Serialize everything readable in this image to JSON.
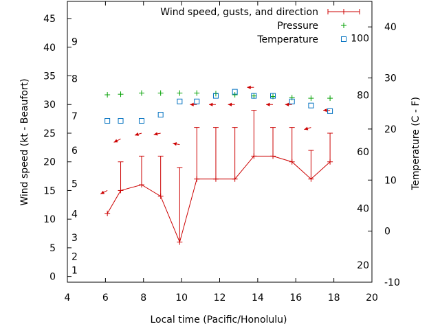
{
  "chart_data": {
    "type": "line",
    "xlabel": "Local time (Pacific/Honolulu)",
    "ylabel": "Wind speed (kt - Beaufort)",
    "y2label": "Temperature (C - F)",
    "xlim": [
      4,
      20
    ],
    "ylim": [
      -1,
      48
    ],
    "y2lim": [
      -10,
      45
    ],
    "x_ticks": [
      "4",
      "6",
      "8",
      "10",
      "12",
      "14",
      "16",
      "18",
      "20"
    ],
    "y_ticks": [
      "0",
      "5",
      "10",
      "15",
      "20",
      "25",
      "30",
      "35",
      "40",
      "45"
    ],
    "y2_ticks": [
      "-10",
      "0",
      "10",
      "20",
      "30",
      "40"
    ],
    "fahrenheit_ticks": [
      "20",
      "40",
      "60",
      "80",
      "100"
    ],
    "beaufort_labels": [
      "1",
      "2",
      "3",
      "4",
      "5",
      "6",
      "7",
      "8",
      "9"
    ],
    "legend_position": "top-right",
    "colors": {
      "wind": "#cc0000",
      "pressure": "#00a000",
      "temperature": "#0070c0"
    },
    "legend": [
      {
        "label": "Wind speed, gusts, and direction",
        "series": "wind"
      },
      {
        "label": "Pressure",
        "series": "pressure"
      },
      {
        "label": "Temperature",
        "series": "temperature"
      }
    ],
    "series": [
      {
        "name": "Wind speed, gusts, and direction",
        "key": "wind",
        "points": [
          {
            "x": 6.1,
            "speed": 11,
            "gust": 11
          },
          {
            "x": 6.8,
            "speed": 15,
            "gust": 20
          },
          {
            "x": 7.9,
            "speed": 16,
            "gust": 21
          },
          {
            "x": 8.9,
            "speed": 14,
            "gust": 21
          },
          {
            "x": 9.9,
            "speed": 6,
            "gust": 19
          },
          {
            "x": 10.8,
            "speed": 17,
            "gust": 26
          },
          {
            "x": 11.8,
            "speed": 17,
            "gust": 26
          },
          {
            "x": 12.8,
            "speed": 17,
            "gust": 26
          },
          {
            "x": 13.8,
            "speed": 21,
            "gust": 29
          },
          {
            "x": 14.8,
            "speed": 21,
            "gust": 26
          },
          {
            "x": 15.8,
            "speed": 20,
            "gust": 26
          },
          {
            "x": 16.8,
            "speed": 17,
            "gust": 22
          },
          {
            "x": 17.8,
            "speed": 20,
            "gust": 25
          }
        ],
        "direction_arrows": [
          {
            "x": 6.1,
            "y": 15,
            "dx": -10,
            "dy": 5
          },
          {
            "x": 6.8,
            "y": 24,
            "dx": -10,
            "dy": 5
          },
          {
            "x": 7.9,
            "y": 25,
            "dx": -10,
            "dy": 3
          },
          {
            "x": 8.9,
            "y": 25,
            "dx": -10,
            "dy": 2
          },
          {
            "x": 9.9,
            "y": 23,
            "dx": -10,
            "dy": -2
          },
          {
            "x": 10.8,
            "y": 30,
            "dx": -10,
            "dy": 0
          },
          {
            "x": 11.8,
            "y": 30,
            "dx": -10,
            "dy": 0
          },
          {
            "x": 12.8,
            "y": 30,
            "dx": -10,
            "dy": 0
          },
          {
            "x": 13.8,
            "y": 33,
            "dx": -10,
            "dy": 0
          },
          {
            "x": 14.8,
            "y": 30,
            "dx": -10,
            "dy": 0
          },
          {
            "x": 15.8,
            "y": 30,
            "dx": -10,
            "dy": 0
          },
          {
            "x": 16.8,
            "y": 26,
            "dx": -10,
            "dy": 3
          },
          {
            "x": 17.8,
            "y": 29,
            "dx": -10,
            "dy": 0
          }
        ]
      },
      {
        "name": "Pressure",
        "key": "pressure",
        "points": [
          {
            "x": 6.1,
            "y": 31.7
          },
          {
            "x": 6.8,
            "y": 31.8
          },
          {
            "x": 7.9,
            "y": 32.0
          },
          {
            "x": 8.9,
            "y": 32.0
          },
          {
            "x": 9.9,
            "y": 32.0
          },
          {
            "x": 10.8,
            "y": 32.0
          },
          {
            "x": 11.8,
            "y": 31.9
          },
          {
            "x": 12.8,
            "y": 31.7
          },
          {
            "x": 13.8,
            "y": 31.5
          },
          {
            "x": 14.8,
            "y": 31.4
          },
          {
            "x": 15.8,
            "y": 31.2
          },
          {
            "x": 16.8,
            "y": 31.1
          },
          {
            "x": 17.8,
            "y": 31.1
          }
        ]
      },
      {
        "name": "Temperature",
        "key": "temperature",
        "points": [
          {
            "x": 6.1,
            "y": 21.6
          },
          {
            "x": 6.8,
            "y": 21.6
          },
          {
            "x": 7.9,
            "y": 21.6
          },
          {
            "x": 8.9,
            "y": 22.8
          },
          {
            "x": 9.9,
            "y": 25.4
          },
          {
            "x": 10.8,
            "y": 25.4
          },
          {
            "x": 11.8,
            "y": 26.5
          },
          {
            "x": 12.8,
            "y": 27.3
          },
          {
            "x": 13.8,
            "y": 26.5
          },
          {
            "x": 14.8,
            "y": 26.5
          },
          {
            "x": 15.8,
            "y": 25.4
          },
          {
            "x": 16.8,
            "y": 24.6
          },
          {
            "x": 17.8,
            "y": 23.5
          }
        ]
      }
    ]
  }
}
